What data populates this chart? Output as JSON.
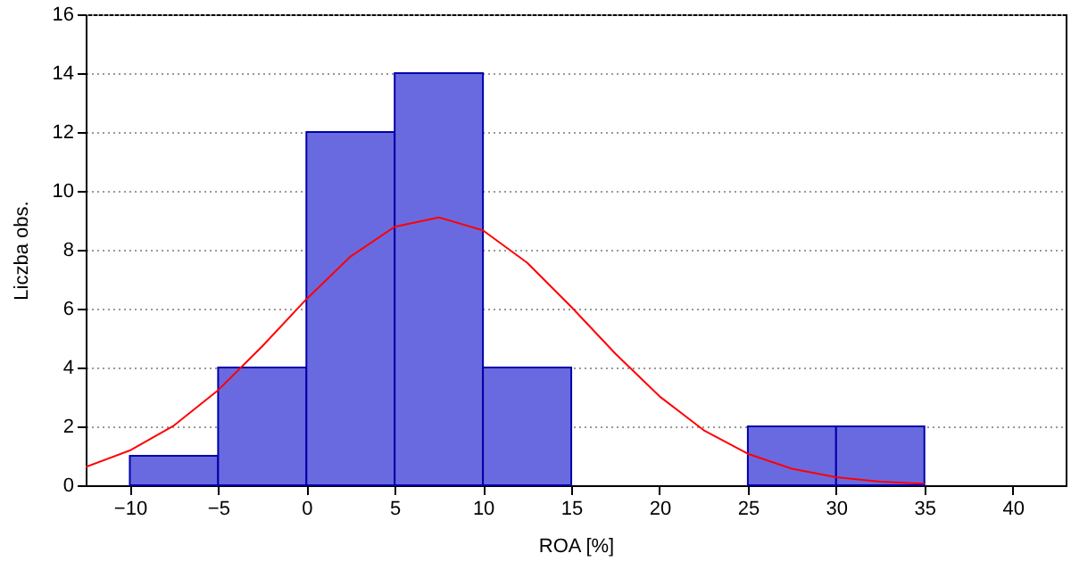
{
  "chart_data": {
    "type": "histogram",
    "xlabel": "ROA [%]",
    "ylabel": "Liczba obs.",
    "bins": [
      -10,
      -5,
      0,
      5,
      10,
      15,
      20,
      25,
      30,
      35
    ],
    "values": [
      1,
      4,
      12,
      14,
      4,
      0,
      0,
      2,
      2
    ],
    "color": "#6a6ae0",
    "series": [
      {
        "type": "line",
        "color": "#ff0000",
        "x": [
          -12.5,
          -10,
          -7.5,
          -5,
          -2.5,
          0,
          2.5,
          5,
          7.5,
          10,
          12.5,
          15,
          17.5,
          20,
          22.5,
          25,
          27.5,
          30,
          32.5,
          35
        ],
        "values": [
          0.62,
          1.18,
          2.03,
          3.23,
          4.72,
          6.32,
          7.77,
          8.78,
          9.1,
          8.66,
          7.56,
          6.06,
          4.47,
          3.02,
          1.87,
          1.07,
          0.56,
          0.27,
          0.12,
          0.05
        ]
      }
    ],
    "xlim": [
      -12.5,
      43
    ],
    "xticks": [
      -10,
      -5,
      0,
      5,
      10,
      15,
      20,
      25,
      30,
      35,
      40
    ],
    "ylim": [
      0,
      16
    ],
    "yticks": [
      0,
      2,
      4,
      6,
      8,
      10,
      12,
      14,
      16
    ],
    "grid": "y",
    "line_style": "solid"
  }
}
